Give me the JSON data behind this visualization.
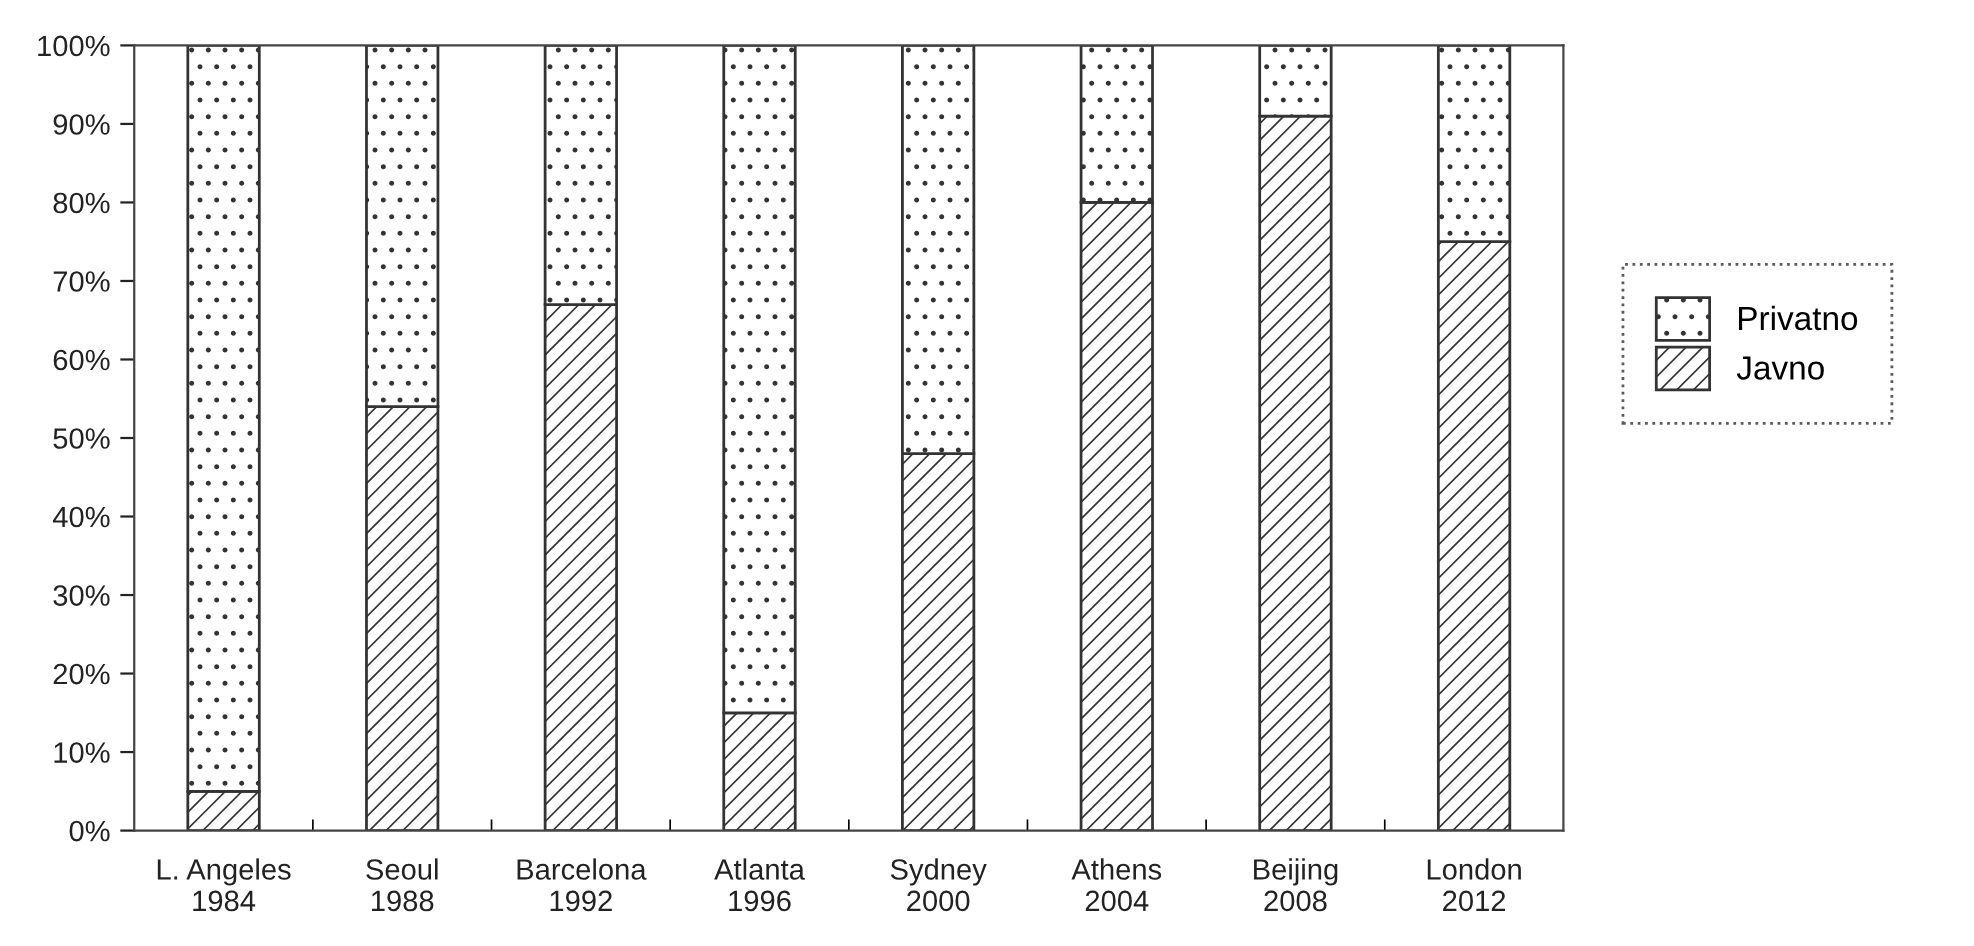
{
  "chart_data": {
    "type": "bar",
    "stacked": true,
    "categories": [
      "L. Angeles\n1984",
      "Seoul\n1988",
      "Barcelona\n1992",
      "Atlanta\n1996",
      "Sydney\n2000",
      "Athens\n2004",
      "Beijing\n2008",
      "London\n2012"
    ],
    "series": [
      {
        "name": "Javno",
        "color": "#333333",
        "values": [
          5,
          54,
          67,
          15,
          48,
          80,
          91,
          75
        ]
      },
      {
        "name": "Privatno",
        "color": "#333333",
        "values": [
          95,
          46,
          33,
          85,
          52,
          20,
          9,
          25
        ]
      }
    ],
    "ylim": [
      0,
      100
    ],
    "yticks": [
      {
        "value": 0,
        "label": "0%"
      },
      {
        "value": 10,
        "label": "10%"
      },
      {
        "value": 20,
        "label": "20%"
      },
      {
        "value": 30,
        "label": "30%"
      },
      {
        "value": 40,
        "label": "40%"
      },
      {
        "value": 50,
        "label": "50%"
      },
      {
        "value": 60,
        "label": "60%"
      },
      {
        "value": 70,
        "label": "70%"
      },
      {
        "value": 80,
        "label": "80%"
      },
      {
        "value": 90,
        "label": "90%"
      },
      {
        "value": 100,
        "label": "100%"
      }
    ],
    "legend": "right"
  }
}
